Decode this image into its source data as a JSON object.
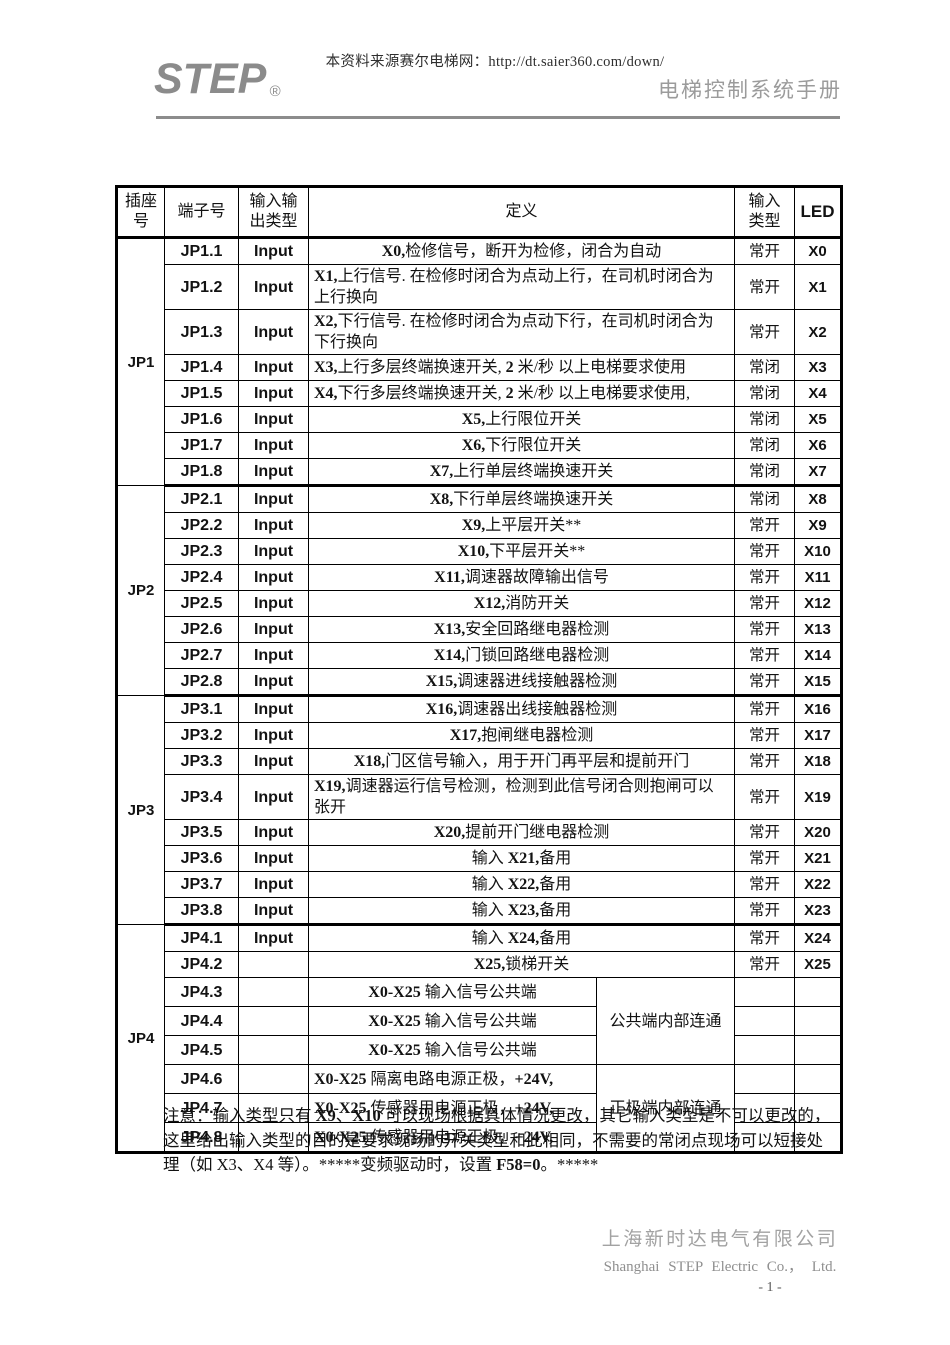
{
  "header": {
    "source_line": "本资料来源赛尔电梯网：http://dt.saier360.com/down/",
    "logo_text": "STEP",
    "logo_registered": "®",
    "doc_title": "电梯控制系统手册"
  },
  "table": {
    "columns": {
      "socket": "插座\n号",
      "terminal": "端子号",
      "io_type": "输入输\n出类型",
      "definition": "定义",
      "input_type": "输入\n类型",
      "led": "LED"
    },
    "groups": [
      {
        "name": "JP1",
        "rows": [
          {
            "t": "JP1.1",
            "io": "Input",
            "def": [
              {
                "tx": "X0,",
                "b": true
              },
              {
                "tx": "检修信号，断开为检修，闭合为自动",
                "b": false
              }
            ],
            "it": "常开",
            "led": "X0"
          },
          {
            "t": "JP1.2",
            "io": "Input",
            "align": "left",
            "def": [
              {
                "tx": "X1,",
                "b": true
              },
              {
                "tx": "上行信号. 在检修时闭合为点动上行，在司机时闭合为上行换向",
                "b": false
              }
            ],
            "it": "常开",
            "led": "X1"
          },
          {
            "t": "JP1.3",
            "io": "Input",
            "align": "left",
            "def": [
              {
                "tx": "X2,",
                "b": true
              },
              {
                "tx": "下行信号. 在检修时闭合为点动下行，在司机时闭合为下行换向",
                "b": false
              }
            ],
            "it": "常开",
            "led": "X2"
          },
          {
            "t": "JP1.4",
            "io": "Input",
            "align": "left",
            "def": [
              {
                "tx": "X3,",
                "b": true
              },
              {
                "tx": "上行多层终端换速开关, ",
                "b": false
              },
              {
                "tx": "2",
                "b": true
              },
              {
                "tx": " 米/秒 以上电梯要求使用",
                "b": false
              }
            ],
            "it": "常闭",
            "led": "X3"
          },
          {
            "t": "JP1.5",
            "io": "Input",
            "align": "left",
            "def": [
              {
                "tx": "X4,",
                "b": true
              },
              {
                "tx": "下行多层终端换速开关, ",
                "b": false
              },
              {
                "tx": "2",
                "b": true
              },
              {
                "tx": " 米/秒 以上电梯要求使用,",
                "b": false
              }
            ],
            "it": "常闭",
            "led": "X4"
          },
          {
            "t": "JP1.6",
            "io": "Input",
            "def": [
              {
                "tx": "X5,",
                "b": true
              },
              {
                "tx": "上行限位开关",
                "b": false
              }
            ],
            "it": "常闭",
            "led": "X5"
          },
          {
            "t": "JP1.7",
            "io": "Input",
            "def": [
              {
                "tx": "X6,",
                "b": true
              },
              {
                "tx": "下行限位开关",
                "b": false
              }
            ],
            "it": "常闭",
            "led": "X6"
          },
          {
            "t": "JP1.8",
            "io": "Input",
            "def": [
              {
                "tx": "X7,",
                "b": true
              },
              {
                "tx": "上行单层终端换速开关",
                "b": false
              }
            ],
            "it": "常闭",
            "led": "X7"
          }
        ]
      },
      {
        "name": "JP2",
        "rows": [
          {
            "t": "JP2.1",
            "io": "Input",
            "def": [
              {
                "tx": "X8,",
                "b": true
              },
              {
                "tx": "下行单层终端换速开关",
                "b": false
              }
            ],
            "it": "常闭",
            "led": "X8"
          },
          {
            "t": "JP2.2",
            "io": "Input",
            "def": [
              {
                "tx": "X9,",
                "b": true
              },
              {
                "tx": "上平层开关**",
                "b": false
              }
            ],
            "it": "常开",
            "led": "X9"
          },
          {
            "t": "JP2.3",
            "io": "Input",
            "def": [
              {
                "tx": "X10,",
                "b": true
              },
              {
                "tx": "下平层开关**",
                "b": false
              }
            ],
            "it": "常开",
            "led": "X10"
          },
          {
            "t": "JP2.4",
            "io": "Input",
            "def": [
              {
                "tx": "X11,",
                "b": true
              },
              {
                "tx": "调速器故障输出信号",
                "b": false
              }
            ],
            "it": "常开",
            "led": "X11"
          },
          {
            "t": "JP2.5",
            "io": "Input",
            "def": [
              {
                "tx": "X12,",
                "b": true
              },
              {
                "tx": "消防开关",
                "b": false
              }
            ],
            "it": "常开",
            "led": "X12"
          },
          {
            "t": "JP2.6",
            "io": "Input",
            "def": [
              {
                "tx": "X13,",
                "b": true
              },
              {
                "tx": "安全回路继电器检测",
                "b": false
              }
            ],
            "it": "常开",
            "led": "X13"
          },
          {
            "t": "JP2.7",
            "io": "Input",
            "def": [
              {
                "tx": "X14,",
                "b": true
              },
              {
                "tx": "门锁回路继电器检测",
                "b": false
              }
            ],
            "it": "常开",
            "led": "X14"
          },
          {
            "t": "JP2.8",
            "io": "Input",
            "def": [
              {
                "tx": "X15,",
                "b": true
              },
              {
                "tx": "调速器进线接触器检测",
                "b": false
              }
            ],
            "it": "常开",
            "led": "X15"
          }
        ]
      },
      {
        "name": "JP3",
        "rows": [
          {
            "t": "JP3.1",
            "io": "Input",
            "def": [
              {
                "tx": "X16,",
                "b": true
              },
              {
                "tx": "调速器出线接触器检测",
                "b": false
              }
            ],
            "it": "常开",
            "led": "X16"
          },
          {
            "t": "JP3.2",
            "io": "Input",
            "def": [
              {
                "tx": "X17,",
                "b": true
              },
              {
                "tx": "抱闸继电器检测",
                "b": false
              }
            ],
            "it": "常开",
            "led": "X17"
          },
          {
            "t": "JP3.3",
            "io": "Input",
            "def": [
              {
                "tx": "X18,",
                "b": true
              },
              {
                "tx": "门区信号输入，用于开门再平层和提前开门",
                "b": false
              }
            ],
            "it": "常开",
            "led": "X18"
          },
          {
            "t": "JP3.4",
            "io": "Input",
            "align": "left",
            "def": [
              {
                "tx": "X19,",
                "b": true
              },
              {
                "tx": "调速器运行信号检测，检测到此信号闭合则抱闸可以张开",
                "b": false
              }
            ],
            "it": "常开",
            "led": "X19"
          },
          {
            "t": "JP3.5",
            "io": "Input",
            "def": [
              {
                "tx": "X20,",
                "b": true
              },
              {
                "tx": "提前开门继电器检测",
                "b": false
              }
            ],
            "it": "常开",
            "led": "X20"
          },
          {
            "t": "JP3.6",
            "io": "Input",
            "def": [
              {
                "tx": "输入 ",
                "b": false
              },
              {
                "tx": "X21,",
                "b": true
              },
              {
                "tx": "备用",
                "b": false
              }
            ],
            "it": "常开",
            "led": "X21"
          },
          {
            "t": "JP3.7",
            "io": "Input",
            "def": [
              {
                "tx": "输入 ",
                "b": false
              },
              {
                "tx": "X22,",
                "b": true
              },
              {
                "tx": "备用",
                "b": false
              }
            ],
            "it": "常开",
            "led": "X22"
          },
          {
            "t": "JP3.8",
            "io": "Input",
            "def": [
              {
                "tx": "输入 ",
                "b": false
              },
              {
                "tx": "X23,",
                "b": true
              },
              {
                "tx": "备用",
                "b": false
              }
            ],
            "it": "常开",
            "led": "X23"
          }
        ]
      },
      {
        "name": "JP4",
        "merges": [
          {
            "start": 2,
            "span": 3,
            "label": "公共端内部连通"
          },
          {
            "start": 5,
            "span": 3,
            "label": "正极端内部连通"
          }
        ],
        "rows": [
          {
            "t": "JP4.1",
            "io": "Input",
            "def": [
              {
                "tx": "输入 ",
                "b": false
              },
              {
                "tx": "X24,",
                "b": true
              },
              {
                "tx": "备用",
                "b": false
              }
            ],
            "it": "常开",
            "led": "X24"
          },
          {
            "t": "JP4.2",
            "io": "",
            "def": [
              {
                "tx": "X25,",
                "b": true
              },
              {
                "tx": "锁梯开关",
                "b": false
              }
            ],
            "it": "常开",
            "led": "X25"
          },
          {
            "t": "JP4.3",
            "io": "",
            "split": true,
            "def": [
              {
                "tx": "X0-X25",
                "b": true
              },
              {
                "tx": " 输入信号公共端",
                "b": false
              }
            ],
            "it": "",
            "led": ""
          },
          {
            "t": "JP4.4",
            "io": "",
            "split": true,
            "def": [
              {
                "tx": "X0-X25",
                "b": true
              },
              {
                "tx": " 输入信号公共端",
                "b": false
              }
            ],
            "it": "",
            "led": ""
          },
          {
            "t": "JP4.5",
            "io": "",
            "split": true,
            "def": [
              {
                "tx": "X0-X25",
                "b": true
              },
              {
                "tx": " 输入信号公共端",
                "b": false
              }
            ],
            "it": "",
            "led": ""
          },
          {
            "t": "JP4.6",
            "io": "",
            "split": true,
            "align": "left",
            "def": [
              {
                "tx": "X0-X25",
                "b": true
              },
              {
                "tx": " 隔离电路电源正极，",
                "b": false
              },
              {
                "tx": "+24V,",
                "b": true
              }
            ],
            "it": "",
            "led": ""
          },
          {
            "t": "JP4.7",
            "io": "",
            "split": true,
            "align": "left",
            "def": [
              {
                "tx": "X0-X25",
                "b": true
              },
              {
                "tx": " 传感器用电源正极，",
                "b": false
              },
              {
                "tx": "+24V,",
                "b": true
              }
            ],
            "it": "",
            "led": ""
          },
          {
            "t": "JP4.8",
            "io": "",
            "split": true,
            "align": "left",
            "def": [
              {
                "tx": "X0-X25",
                "b": true
              },
              {
                "tx": " 传感器用电源正极，",
                "b": false
              },
              {
                "tx": "+24V,",
                "b": true
              }
            ],
            "it": "",
            "led": ""
          }
        ]
      }
    ]
  },
  "note_lines": [
    [
      {
        "tx": "注意：输入类型只有 ",
        "b": false
      },
      {
        "tx": "X9",
        "b": true
      },
      {
        "tx": "、",
        "b": false
      },
      {
        "tx": "X10",
        "b": true
      },
      {
        "tx": " 可以现场根据具体情况更改，其它输入类型是不可以更改的，",
        "b": false
      }
    ],
    [
      {
        "tx": "这里给出输入类型的目的是要求现场的开关类型和此相同，不需要的常闭点现场可以短接处",
        "b": false
      }
    ],
    [
      {
        "tx": "理（如 X3、X4 等）。*****变频驱动时，设置 ",
        "b": false
      },
      {
        "tx": "F58=0",
        "b": true
      },
      {
        "tx": "。*****",
        "b": false
      }
    ]
  ],
  "footer": {
    "company_cn": "上海新时达电气有限公司",
    "company_en": "Shanghai STEP Electric Co.， Ltd.",
    "page_number": "- 1 -"
  }
}
